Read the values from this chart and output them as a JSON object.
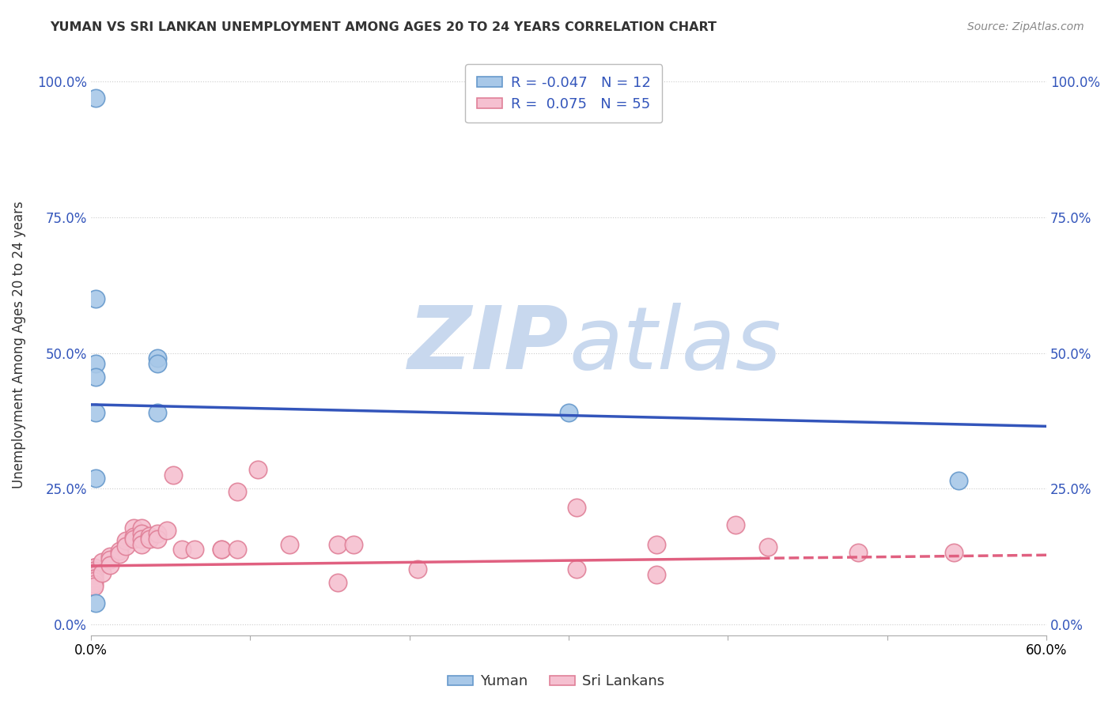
{
  "title": "YUMAN VS SRI LANKAN UNEMPLOYMENT AMONG AGES 20 TO 24 YEARS CORRELATION CHART",
  "source": "Source: ZipAtlas.com",
  "ylabel": "Unemployment Among Ages 20 to 24 years",
  "ytick_labels": [
    "0.0%",
    "25.0%",
    "50.0%",
    "75.0%",
    "100.0%"
  ],
  "ytick_values": [
    0.0,
    0.25,
    0.5,
    0.75,
    1.0
  ],
  "xlim": [
    0.0,
    0.6
  ],
  "ylim": [
    -0.02,
    1.05
  ],
  "yuman_color": "#a8c8e8",
  "yuman_edge_color": "#6699cc",
  "srilankans_color": "#f5c0d0",
  "srilankans_edge_color": "#e08098",
  "trend_yuman_color": "#3355bb",
  "trend_sri_color": "#e06080",
  "watermark_zip_color": "#c8d8ee",
  "watermark_atlas_color": "#c8d8ee",
  "background_color": "#ffffff",
  "grid_color": "#cccccc",
  "legend_text_color": "#3355bb",
  "yuman_x": [
    0.003,
    0.003,
    0.003,
    0.003,
    0.003,
    0.042,
    0.042,
    0.042,
    0.003,
    0.003,
    0.3,
    0.545
  ],
  "yuman_y": [
    0.97,
    0.6,
    0.48,
    0.455,
    0.39,
    0.49,
    0.48,
    0.39,
    0.27,
    0.04,
    0.39,
    0.265
  ],
  "srilankans_x": [
    0.002,
    0.002,
    0.002,
    0.002,
    0.002,
    0.002,
    0.002,
    0.002,
    0.002,
    0.002,
    0.002,
    0.002,
    0.002,
    0.007,
    0.007,
    0.012,
    0.012,
    0.012,
    0.018,
    0.018,
    0.022,
    0.022,
    0.027,
    0.027,
    0.027,
    0.032,
    0.032,
    0.032,
    0.032,
    0.037,
    0.037,
    0.042,
    0.042,
    0.048,
    0.052,
    0.057,
    0.065,
    0.082,
    0.082,
    0.092,
    0.092,
    0.105,
    0.125,
    0.155,
    0.155,
    0.165,
    0.205,
    0.305,
    0.305,
    0.355,
    0.355,
    0.405,
    0.425,
    0.482,
    0.542
  ],
  "srilankans_y": [
    0.105,
    0.105,
    0.105,
    0.1,
    0.1,
    0.095,
    0.095,
    0.09,
    0.085,
    0.085,
    0.08,
    0.075,
    0.07,
    0.115,
    0.095,
    0.125,
    0.12,
    0.11,
    0.135,
    0.13,
    0.155,
    0.145,
    0.178,
    0.162,
    0.158,
    0.178,
    0.168,
    0.158,
    0.148,
    0.163,
    0.158,
    0.168,
    0.158,
    0.173,
    0.275,
    0.138,
    0.138,
    0.138,
    0.138,
    0.138,
    0.245,
    0.285,
    0.148,
    0.148,
    0.078,
    0.148,
    0.102,
    0.215,
    0.102,
    0.092,
    0.148,
    0.183,
    0.143,
    0.133,
    0.133
  ],
  "trend_yuman_x0": 0.0,
  "trend_yuman_y0": 0.405,
  "trend_yuman_x1": 0.6,
  "trend_yuman_y1": 0.365,
  "trend_sri_x0": 0.0,
  "trend_sri_y0": 0.108,
  "trend_sri_x1": 0.6,
  "trend_sri_y1": 0.128,
  "trend_sri_solid_end": 0.42
}
